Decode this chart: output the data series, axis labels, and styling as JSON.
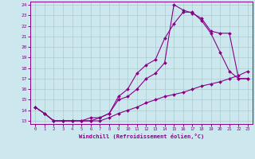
{
  "xlabel": "Windchill (Refroidissement éolien,°C)",
  "background_color": "#cce8ee",
  "grid_color": "#aacccc",
  "line_color": "#880088",
  "xlim": [
    -0.5,
    23.5
  ],
  "ylim": [
    12.7,
    24.3
  ],
  "xticks": [
    0,
    1,
    2,
    3,
    4,
    5,
    6,
    7,
    8,
    9,
    10,
    11,
    12,
    13,
    14,
    15,
    16,
    17,
    18,
    19,
    20,
    21,
    22,
    23
  ],
  "yticks": [
    13,
    14,
    15,
    16,
    17,
    18,
    19,
    20,
    21,
    22,
    23,
    24
  ],
  "line1_x": [
    0,
    1,
    2,
    3,
    4,
    5,
    6,
    7,
    8,
    9,
    10,
    11,
    12,
    13,
    14,
    15,
    16,
    17,
    18,
    19,
    20,
    21,
    22,
    23
  ],
  "line1_y": [
    14.3,
    13.7,
    13.0,
    13.0,
    13.0,
    13.0,
    13.0,
    13.3,
    13.7,
    15.3,
    16.0,
    17.5,
    18.3,
    18.8,
    20.8,
    22.2,
    23.3,
    23.3,
    22.5,
    21.3,
    19.5,
    17.7,
    17.0,
    17.0
  ],
  "line2_x": [
    0,
    1,
    2,
    3,
    4,
    5,
    6,
    7,
    8,
    9,
    10,
    11,
    12,
    13,
    14,
    15,
    16,
    17,
    18,
    19,
    20,
    21,
    22,
    23
  ],
  "line2_y": [
    14.3,
    13.7,
    13.0,
    13.0,
    13.0,
    13.0,
    13.3,
    13.3,
    13.7,
    15.0,
    15.3,
    16.0,
    17.0,
    17.5,
    18.5,
    24.0,
    23.5,
    23.2,
    22.7,
    21.5,
    21.3,
    21.3,
    17.0,
    17.0
  ],
  "line3_x": [
    0,
    1,
    2,
    3,
    4,
    5,
    6,
    7,
    8,
    9,
    10,
    11,
    12,
    13,
    14,
    15,
    16,
    17,
    18,
    19,
    20,
    21,
    22,
    23
  ],
  "line3_y": [
    14.3,
    13.7,
    13.0,
    13.0,
    13.0,
    13.0,
    13.0,
    13.0,
    13.3,
    13.7,
    14.0,
    14.3,
    14.7,
    15.0,
    15.3,
    15.5,
    15.7,
    16.0,
    16.3,
    16.5,
    16.7,
    17.0,
    17.3,
    17.7
  ]
}
